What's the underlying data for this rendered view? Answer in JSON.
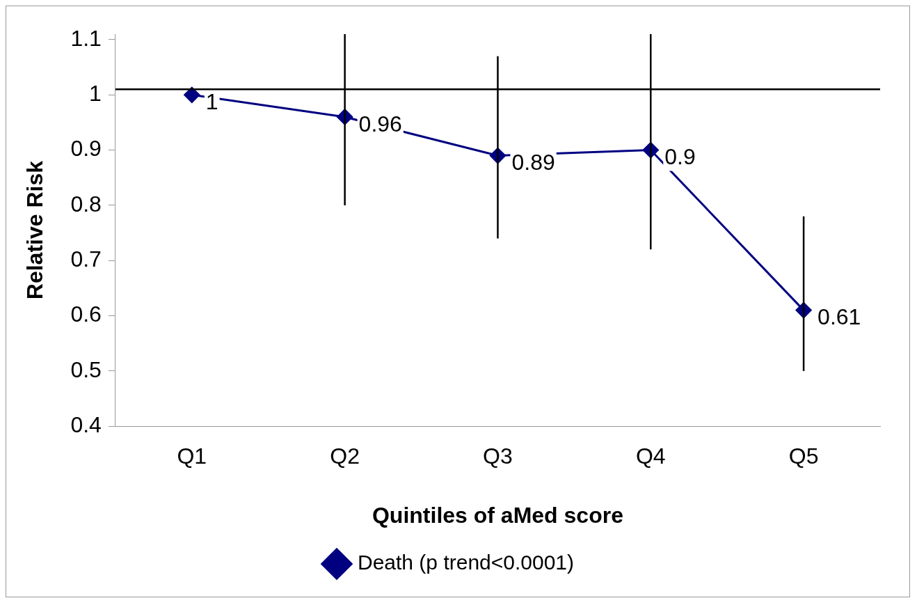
{
  "chart_data": {
    "type": "line",
    "xlabel": "Quintiles of aMed score",
    "ylabel": "Relative Risk",
    "categories": [
      "Q1",
      "Q2",
      "Q3",
      "Q4",
      "Q5"
    ],
    "series": [
      {
        "name": "Death (p trend<0.0001)",
        "color": "#000080",
        "values": [
          1,
          0.96,
          0.89,
          0.9,
          0.61
        ],
        "errors": [
          null,
          [
            0.8,
            1.11
          ],
          [
            0.74,
            1.07
          ],
          [
            0.72,
            1.11
          ],
          [
            0.5,
            0.78
          ]
        ]
      }
    ],
    "ylim": [
      0.4,
      1.11
    ],
    "yticks": [
      0.4,
      0.5,
      0.6,
      0.7,
      0.8,
      0.9,
      1,
      1.1
    ],
    "ref_lines": [
      {
        "axis": "y",
        "value": 1.01,
        "color": "#000000"
      }
    ],
    "marker": "diamond",
    "line_style": "solid",
    "data_labels": true,
    "grid": false,
    "legend": "bottom"
  }
}
